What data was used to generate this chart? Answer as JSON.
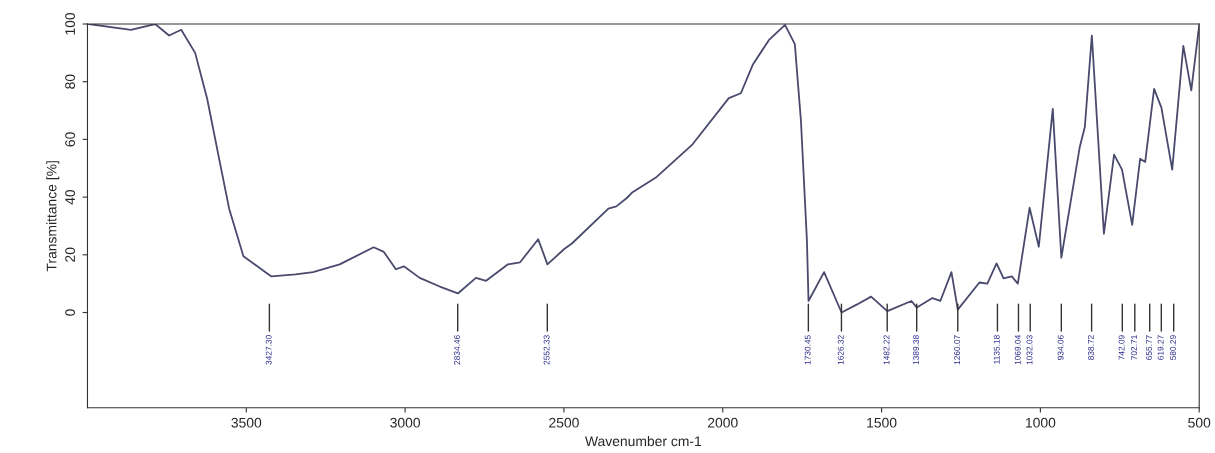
{
  "chart_data": {
    "type": "line",
    "xlabel": "Wavenumber cm-1",
    "ylabel": "Transmittance [%]",
    "xlim": [
      4000,
      500
    ],
    "ylim": [
      -33,
      100
    ],
    "xticks": [
      3500,
      3000,
      2500,
      2000,
      1500,
      1000,
      500
    ],
    "yticks": [
      0,
      20,
      40,
      60,
      80,
      100
    ],
    "grid": false,
    "marker": "none",
    "line_style": "solid",
    "series": [
      {
        "color": "#4a4a6e",
        "x": [
          3996,
          3863,
          3787,
          3743,
          3705,
          3661,
          3623,
          3585,
          3554,
          3509,
          3421,
          3345,
          3290,
          3206,
          3099,
          3067,
          3029,
          3004,
          2954,
          2891,
          2834,
          2777,
          2745,
          2676,
          2638,
          2581,
          2552,
          2499,
          2474,
          2360,
          2335,
          2303,
          2284,
          2208,
          2095,
          1981,
          1943,
          1905,
          1855,
          1804,
          1773,
          1754,
          1735,
          1730,
          1681,
          1626,
          1577,
          1533,
          1482,
          1406,
          1389,
          1340,
          1315,
          1280,
          1260,
          1192,
          1167,
          1138,
          1116,
          1090,
          1071,
          1034,
          1005,
          961,
          934,
          876,
          860,
          838,
          800,
          768,
          743,
          711,
          686,
          670,
          642,
          619,
          585,
          550,
          525,
          500
        ],
        "values": [
          100,
          98,
          100,
          96,
          98,
          90,
          74,
          53,
          36,
          19.5,
          12.5,
          13.2,
          14,
          16.7,
          22.6,
          21,
          15,
          16,
          12,
          9,
          6.6,
          12,
          11,
          16.7,
          17.4,
          25.4,
          16.7,
          22,
          24,
          36,
          36.8,
          39.6,
          41.7,
          47,
          58.3,
          74.3,
          76,
          86,
          94.4,
          99.7,
          93,
          66.7,
          25,
          4,
          14,
          0,
          2.8,
          5.5,
          0.5,
          4,
          1.7,
          5,
          4,
          14,
          1,
          10.4,
          10,
          17,
          11.8,
          12.5,
          10,
          36.3,
          22.8,
          70.6,
          19,
          57.4,
          64.4,
          96,
          27.3,
          54.7,
          49.5,
          30.4,
          53.3,
          52.2,
          77.5,
          71,
          49.5,
          92.4,
          77,
          99.6
        ]
      }
    ],
    "ref_lines": [
      {
        "axis": "x",
        "value": 3427.3,
        "label": "3427.30"
      },
      {
        "axis": "x",
        "value": 2834.46,
        "label": "2834.46"
      },
      {
        "axis": "x",
        "value": 2552.33,
        "label": "2552.33"
      },
      {
        "axis": "x",
        "value": 1730.45,
        "label": "1730.45"
      },
      {
        "axis": "x",
        "value": 1626.32,
        "label": "1626.32"
      },
      {
        "axis": "x",
        "value": 1482.22,
        "label": "1482.22"
      },
      {
        "axis": "x",
        "value": 1389.38,
        "label": "1389.38"
      },
      {
        "axis": "x",
        "value": 1260.07,
        "label": "1260.07"
      },
      {
        "axis": "x",
        "value": 1135.18,
        "label": "1135.18"
      },
      {
        "axis": "x",
        "value": 1069.04,
        "label": "1069.04"
      },
      {
        "axis": "x",
        "value": 1032.03,
        "label": "1032.03"
      },
      {
        "axis": "x",
        "value": 934.06,
        "label": "934.06"
      },
      {
        "axis": "x",
        "value": 838.72,
        "label": "838.72"
      },
      {
        "axis": "x",
        "value": 742.09,
        "label": "742.09"
      },
      {
        "axis": "x",
        "value": 702.71,
        "label": "702.71"
      },
      {
        "axis": "x",
        "value": 655.77,
        "label": "655.77"
      },
      {
        "axis": "x",
        "value": 619.27,
        "label": "619.27"
      },
      {
        "axis": "x",
        "value": 580.29,
        "label": "580.29"
      }
    ]
  }
}
